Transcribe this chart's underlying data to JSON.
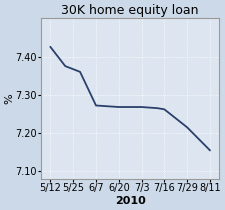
{
  "title": "30K home equity loan",
  "ylabel": "%",
  "xlabel": "2010",
  "x_labels": [
    "5/12",
    "5/25",
    "6/7",
    "6/20",
    "7/3",
    "7/16",
    "7/29",
    "8/11"
  ],
  "ylim": [
    7.08,
    7.5
  ],
  "yticks": [
    7.1,
    7.2,
    7.3,
    7.4
  ],
  "x_plot": [
    0,
    0.65,
    1.3,
    2.0,
    3.0,
    4.0,
    4.7,
    5.0,
    6.0,
    7.0
  ],
  "y_plot": [
    7.425,
    7.375,
    7.36,
    7.272,
    7.268,
    7.268,
    7.265,
    7.262,
    7.215,
    7.155
  ],
  "line_color": "#2b3f6b",
  "bg_color": "#ccd9e8",
  "plot_bg_color": "#dde6f0",
  "border_color": "#999999",
  "title_fontsize": 9,
  "ylabel_fontsize": 8,
  "xlabel_fontsize": 8,
  "tick_fontsize": 7
}
